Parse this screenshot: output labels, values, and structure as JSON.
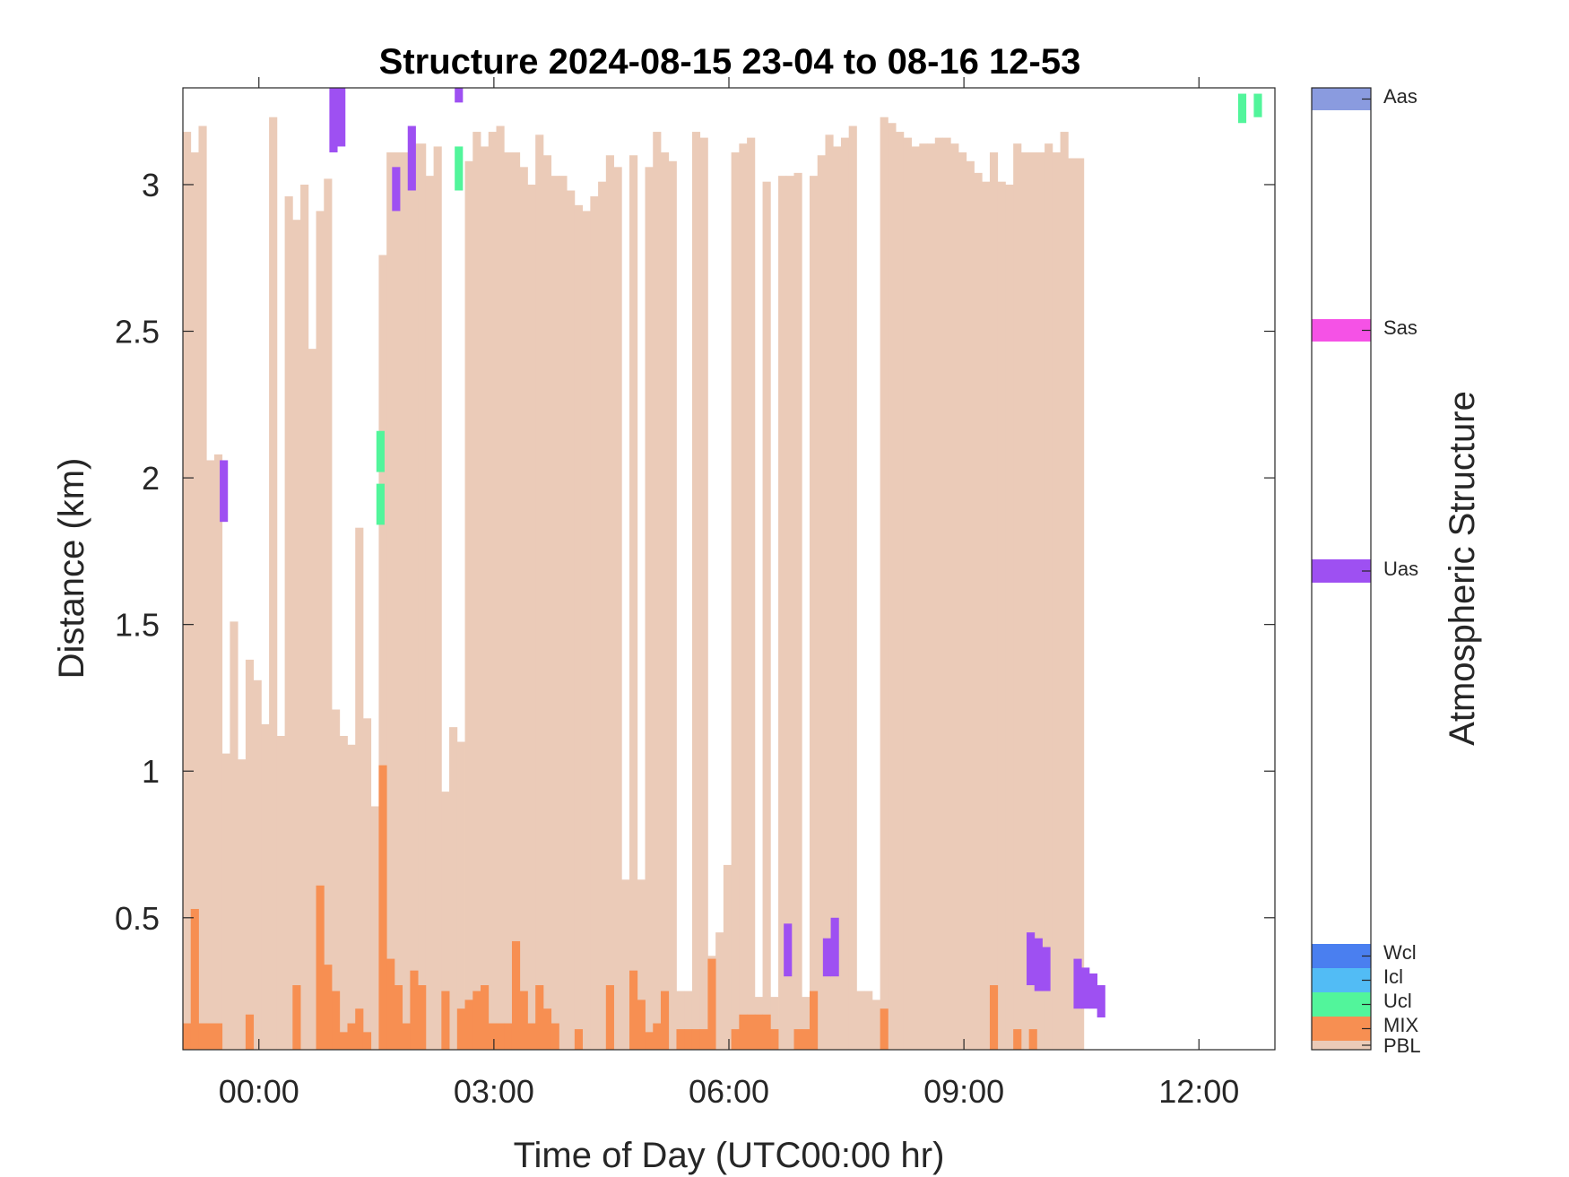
{
  "chart_data": {
    "type": "heatmap",
    "title": "Structure 2024-08-15 23-04 to 08-16 12-53",
    "xlabel": "Time of Day (UTC00:00 hr)",
    "ylabel": "Distance (km)",
    "colorbar_label": "Atmospheric Structure",
    "xlim": [
      -0.97,
      12.97
    ],
    "ylim": [
      0.05,
      3.33
    ],
    "x_ticks": [
      0,
      3,
      6,
      9,
      12
    ],
    "x_tick_labels": [
      "00:00",
      "03:00",
      "06:00",
      "09:00",
      "12:00"
    ],
    "y_ticks": [
      0.5,
      1,
      1.5,
      2,
      2.5,
      3
    ],
    "y_tick_labels": [
      "0.5",
      "1",
      "1.5",
      "2",
      "2.5",
      "3"
    ],
    "bin_width_hr": 0.1,
    "grid": false,
    "categories": [
      {
        "name": "Aas",
        "color": "#8a9bdf"
      },
      {
        "name": "Sas",
        "color": "#f552e6"
      },
      {
        "name": "Uas",
        "color": "#9e50f2"
      },
      {
        "name": "Wcl",
        "color": "#4a7ff0"
      },
      {
        "name": "Icl",
        "color": "#52bcf5"
      },
      {
        "name": "Ucl",
        "color": "#52f59b"
      },
      {
        "name": "MIX",
        "color": "#f78f52"
      },
      {
        "name": "PBL",
        "color": "#ebcbb8"
      }
    ],
    "pbl_top_km": [
      3.18,
      3.11,
      3.2,
      2.06,
      2.08,
      1.06,
      1.51,
      1.04,
      1.38,
      1.31,
      1.16,
      3.23,
      1.12,
      2.96,
      2.88,
      3.0,
      2.44,
      2.91,
      3.02,
      1.21,
      1.12,
      1.09,
      1.83,
      1.18,
      0.88,
      2.76,
      3.11,
      3.11,
      3.11,
      3.14,
      3.14,
      3.03,
      3.13,
      0.93,
      1.15,
      1.1,
      3.08,
      3.18,
      3.13,
      3.18,
      3.2,
      3.11,
      3.11,
      3.06,
      3.0,
      3.17,
      3.1,
      3.03,
      3.03,
      2.98,
      2.93,
      2.91,
      2.96,
      3.01,
      3.1,
      3.06,
      0.63,
      3.1,
      0.63,
      3.06,
      3.18,
      3.11,
      3.08,
      0.25,
      0.25,
      3.18,
      3.16,
      0.37,
      0.45,
      0.68,
      3.11,
      3.14,
      3.16,
      0.23,
      3.01,
      0.23,
      3.03,
      3.03,
      3.04,
      0.23,
      3.03,
      3.1,
      3.17,
      3.13,
      3.16,
      3.2,
      0.25,
      0.25,
      0.22,
      3.23,
      3.21,
      3.18,
      3.16,
      3.13,
      3.14,
      3.14,
      3.16,
      3.16,
      3.14,
      3.11,
      3.08,
      3.04,
      3.01,
      3.11,
      3.01,
      3.0,
      3.14,
      3.11,
      3.11,
      3.11,
      3.14,
      3.11,
      3.18,
      3.09,
      3.09
    ],
    "pbl_gaps": [
      {
        "start_hr": -0.6,
        "end_hr": -0.2
      },
      {
        "start_hr": 1.8,
        "end_hr": 1.9
      },
      {
        "start_hr": 3.6,
        "end_hr": 3.6
      },
      {
        "start_hr": 6.1,
        "end_hr": 6.6
      },
      {
        "start_hr": 7.0,
        "end_hr": 7.2
      },
      {
        "start_hr": 7.8,
        "end_hr": 7.9
      },
      {
        "start_hr": 8.6,
        "end_hr": 8.7
      },
      {
        "start_hr": 9.8,
        "end_hr": 10.2
      }
    ],
    "mix_top_km": [
      0.14,
      0.53,
      0.14,
      0.14,
      0.14,
      0.05,
      0.05,
      0.05,
      0.17,
      0.05,
      0.05,
      0.05,
      0.05,
      0.05,
      0.27,
      0.05,
      0.05,
      0.61,
      0.34,
      0.25,
      0.11,
      0.14,
      0.19,
      0.11,
      0.05,
      1.02,
      0.36,
      0.27,
      0.14,
      0.32,
      0.27,
      0.05,
      0.05,
      0.25,
      0.05,
      0.19,
      0.22,
      0.25,
      0.27,
      0.14,
      0.14,
      0.14,
      0.42,
      0.25,
      0.14,
      0.27,
      0.19,
      0.14,
      0.05,
      0.05,
      0.12,
      0.05,
      0.05,
      0.05,
      0.27,
      0.05,
      0.05,
      0.32,
      0.22,
      0.11,
      0.14,
      0.25,
      0.05,
      0.12,
      0.12,
      0.12,
      0.12,
      0.36,
      0.05,
      0.05,
      0.12,
      0.17,
      0.17,
      0.17,
      0.17,
      0.12,
      0.05,
      0.05,
      0.12,
      0.12,
      0.25,
      0.05,
      0.05,
      0.05,
      0.05,
      0.05,
      0.05,
      0.05,
      0.05,
      0.19,
      0.05,
      0.05,
      0.05,
      0.05,
      0.05,
      0.05,
      0.05,
      0.05,
      0.05,
      0.05,
      0.05,
      0.05,
      0.05,
      0.27,
      0.05,
      0.05,
      0.12,
      0.05,
      0.12,
      0.05,
      0.05,
      0.05,
      0.05,
      0.05,
      0.05,
      0.05
    ],
    "uas_cells": [
      {
        "t": -0.5,
        "y0": 1.85,
        "y1": 2.06
      },
      {
        "t": 0.9,
        "y0": 3.11,
        "y1": 3.33
      },
      {
        "t": 1.0,
        "y0": 3.13,
        "y1": 3.33
      },
      {
        "t": 1.7,
        "y0": 2.91,
        "y1": 3.06
      },
      {
        "t": 1.9,
        "y0": 2.98,
        "y1": 3.2
      },
      {
        "t": 2.5,
        "y0": 3.28,
        "y1": 3.33
      },
      {
        "t": 6.7,
        "y0": 0.3,
        "y1": 0.48
      },
      {
        "t": 7.2,
        "y0": 0.3,
        "y1": 0.43
      },
      {
        "t": 7.3,
        "y0": 0.3,
        "y1": 0.5
      },
      {
        "t": 9.8,
        "y0": 0.27,
        "y1": 0.45
      },
      {
        "t": 9.9,
        "y0": 0.25,
        "y1": 0.43
      },
      {
        "t": 10.0,
        "y0": 0.25,
        "y1": 0.4
      },
      {
        "t": 10.4,
        "y0": 0.19,
        "y1": 0.36
      },
      {
        "t": 10.5,
        "y0": 0.19,
        "y1": 0.33
      },
      {
        "t": 10.6,
        "y0": 0.19,
        "y1": 0.31
      },
      {
        "t": 10.7,
        "y0": 0.16,
        "y1": 0.27
      }
    ],
    "ucl_cells": [
      {
        "t": 1.5,
        "y0": 2.02,
        "y1": 2.16
      },
      {
        "t": 1.5,
        "y0": 1.84,
        "y1": 1.98
      },
      {
        "t": 2.5,
        "y0": 2.98,
        "y1": 3.13
      },
      {
        "t": 12.5,
        "y0": 3.21,
        "y1": 3.31
      },
      {
        "t": 12.7,
        "y0": 3.23,
        "y1": 3.31
      }
    ]
  }
}
